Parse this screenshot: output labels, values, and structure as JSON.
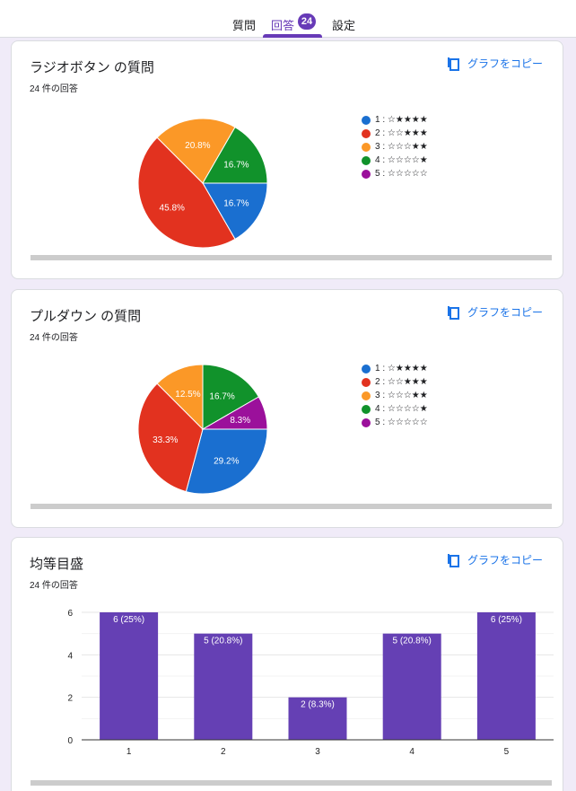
{
  "tabs": [
    {
      "label": "質問"
    },
    {
      "label": "回答",
      "badge": "24",
      "active": true
    },
    {
      "label": "設定"
    }
  ],
  "colors": {
    "accent": "#673ab7",
    "link": "#1a73e8",
    "series": [
      "#1a6fd0",
      "#e2321f",
      "#fb9827",
      "#11922b",
      "#9b109b"
    ],
    "bar": "#6540b4"
  },
  "copy_label": "グラフをコピー",
  "legend": [
    {
      "label": "1 : ☆★★★★"
    },
    {
      "label": "2 : ☆☆★★★"
    },
    {
      "label": "3 : ☆☆☆★★"
    },
    {
      "label": "4 : ☆☆☆☆★"
    },
    {
      "label": "5 : ☆☆☆☆☆"
    }
  ],
  "cards": [
    {
      "title": "ラジオボタン の質問",
      "subtitle": "24 件の回答"
    },
    {
      "title": "プルダウン の質問",
      "subtitle": "24 件の回答"
    },
    {
      "title": "均等目盛",
      "subtitle": "24 件の回答"
    }
  ],
  "chart_data": [
    {
      "type": "pie",
      "title": "ラジオボタン の質問",
      "categories": [
        "1 : ☆★★★★",
        "2 : ☆☆★★★",
        "3 : ☆☆☆★★",
        "4 : ☆☆☆☆★",
        "5 : ☆☆☆☆☆"
      ],
      "values": [
        4,
        11,
        5,
        4,
        0
      ],
      "percent_labels": [
        "16.7%",
        "45.8%",
        "20.8%",
        "16.7%",
        ""
      ],
      "legend_position": "right"
    },
    {
      "type": "pie",
      "title": "プルダウン の質問",
      "categories": [
        "1 : ☆★★★★",
        "2 : ☆☆★★★",
        "3 : ☆☆☆★★",
        "4 : ☆☆☆☆★",
        "5 : ☆☆☆☆☆"
      ],
      "values": [
        7,
        8,
        3,
        4,
        2
      ],
      "percent_labels": [
        "29.2%",
        "33.3%",
        "12.5%",
        "16.7%",
        "8.3%"
      ],
      "legend_position": "right"
    },
    {
      "type": "bar",
      "title": "均等目盛",
      "categories": [
        "1",
        "2",
        "3",
        "4",
        "5"
      ],
      "values": [
        6,
        5,
        2,
        5,
        6
      ],
      "bar_labels": [
        "6 (25%)",
        "5 (20.8%)",
        "2 (8.3%)",
        "5 (20.8%)",
        "6 (25%)"
      ],
      "yticks": [
        0,
        2,
        4,
        6
      ],
      "ylim": [
        0,
        6
      ],
      "grid": true,
      "xlabel": "",
      "ylabel": ""
    }
  ]
}
